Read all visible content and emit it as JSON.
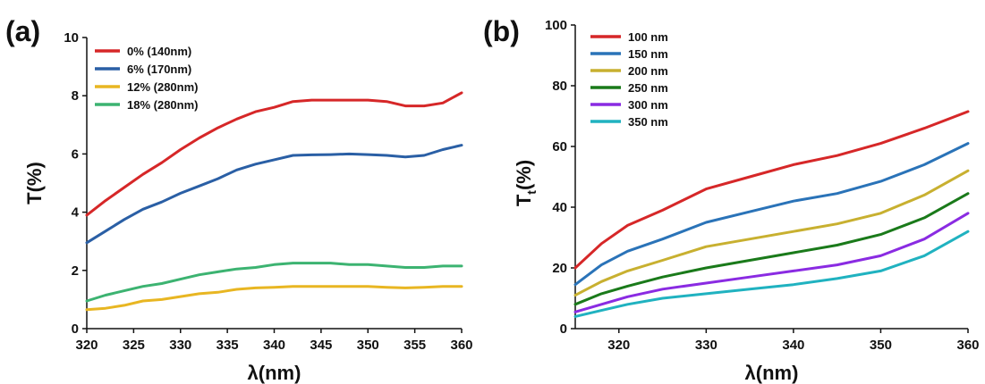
{
  "chart_data": [
    {
      "type": "line",
      "panel_label": "(a)",
      "xlabel": "λ(nm)",
      "ylabel": "T(%)",
      "xlim": [
        320,
        360
      ],
      "ylim": [
        0,
        10
      ],
      "xticks": [
        320,
        325,
        330,
        335,
        340,
        345,
        350,
        355,
        360
      ],
      "yticks": [
        0,
        2,
        4,
        6,
        8,
        10
      ],
      "legend_position": "top-left",
      "series": [
        {
          "name": "0% (140nm)",
          "color": "#d62728",
          "x": [
            320,
            322,
            324,
            326,
            328,
            330,
            332,
            334,
            336,
            338,
            340,
            342,
            344,
            346,
            348,
            350,
            352,
            354,
            356,
            358,
            360
          ],
          "y": [
            3.9,
            4.4,
            4.85,
            5.3,
            5.7,
            6.15,
            6.55,
            6.9,
            7.2,
            7.45,
            7.6,
            7.8,
            7.85,
            7.85,
            7.85,
            7.85,
            7.8,
            7.65,
            7.65,
            7.75,
            8.1
          ]
        },
        {
          "name": "6% (170nm)",
          "color": "#2a5fa5",
          "x": [
            320,
            322,
            324,
            326,
            328,
            330,
            332,
            334,
            336,
            338,
            340,
            342,
            344,
            346,
            348,
            350,
            352,
            354,
            356,
            358,
            360
          ],
          "y": [
            2.95,
            3.35,
            3.75,
            4.1,
            4.35,
            4.65,
            4.9,
            5.15,
            5.45,
            5.65,
            5.8,
            5.95,
            5.97,
            5.98,
            6.0,
            5.98,
            5.95,
            5.9,
            5.95,
            6.15,
            6.3
          ]
        },
        {
          "name": "12% (280nm)",
          "color": "#e8b622",
          "x": [
            320,
            322,
            324,
            326,
            328,
            330,
            332,
            334,
            336,
            338,
            340,
            342,
            344,
            346,
            348,
            350,
            352,
            354,
            356,
            358,
            360
          ],
          "y": [
            0.65,
            0.7,
            0.8,
            0.95,
            1.0,
            1.1,
            1.2,
            1.25,
            1.35,
            1.4,
            1.42,
            1.45,
            1.45,
            1.45,
            1.45,
            1.45,
            1.42,
            1.4,
            1.42,
            1.45,
            1.45
          ]
        },
        {
          "name": "18% (280nm)",
          "color": "#3cb371",
          "x": [
            320,
            322,
            324,
            326,
            328,
            330,
            332,
            334,
            336,
            338,
            340,
            342,
            344,
            346,
            348,
            350,
            352,
            354,
            356,
            358,
            360
          ],
          "y": [
            0.95,
            1.15,
            1.3,
            1.45,
            1.55,
            1.7,
            1.85,
            1.95,
            2.05,
            2.1,
            2.2,
            2.25,
            2.25,
            2.25,
            2.2,
            2.2,
            2.15,
            2.1,
            2.1,
            2.15,
            2.15
          ]
        }
      ]
    },
    {
      "type": "line",
      "panel_label": "(b)",
      "xlabel": "λ(nm)",
      "ylabel": "Tt(%)",
      "ylabel_main": "T",
      "ylabel_sub": "t",
      "ylabel_tail": "(%)",
      "xlim": [
        315,
        360
      ],
      "ylim": [
        0,
        100
      ],
      "xticks": [
        320,
        330,
        340,
        350,
        360
      ],
      "yticks": [
        0,
        20,
        40,
        60,
        80,
        100
      ],
      "legend_position": "top-left",
      "series": [
        {
          "name": "100 nm",
          "color": "#d62728",
          "x": [
            315,
            318,
            321,
            325,
            330,
            335,
            340,
            345,
            350,
            355,
            360
          ],
          "y": [
            20,
            28,
            34,
            39,
            46,
            50,
            54,
            57,
            61,
            66,
            71.5
          ]
        },
        {
          "name": "150 nm",
          "color": "#2a73b8",
          "x": [
            315,
            318,
            321,
            325,
            330,
            335,
            340,
            345,
            350,
            355,
            360
          ],
          "y": [
            14.5,
            21,
            25.5,
            29.5,
            35,
            38.5,
            42,
            44.5,
            48.5,
            54,
            61
          ]
        },
        {
          "name": "200 nm",
          "color": "#c8b030",
          "x": [
            315,
            318,
            321,
            325,
            330,
            335,
            340,
            345,
            350,
            355,
            360
          ],
          "y": [
            11,
            15.5,
            19,
            22.5,
            27,
            29.5,
            32,
            34.5,
            38,
            44,
            52
          ]
        },
        {
          "name": "250 nm",
          "color": "#1a7a1a",
          "x": [
            315,
            318,
            321,
            325,
            330,
            335,
            340,
            345,
            350,
            355,
            360
          ],
          "y": [
            8,
            11.5,
            14,
            17,
            20,
            22.5,
            25,
            27.5,
            31,
            36.5,
            44.5
          ]
        },
        {
          "name": "300 nm",
          "color": "#8a2be2",
          "x": [
            315,
            318,
            321,
            325,
            330,
            335,
            340,
            345,
            350,
            355,
            360
          ],
          "y": [
            5.5,
            8,
            10.5,
            13,
            15,
            17,
            19,
            21,
            24,
            29.5,
            38
          ]
        },
        {
          "name": "350 nm",
          "color": "#20b2c0",
          "x": [
            315,
            318,
            321,
            325,
            330,
            335,
            340,
            345,
            350,
            355,
            360
          ],
          "y": [
            4,
            6,
            8,
            10,
            11.5,
            13,
            14.5,
            16.5,
            19,
            24,
            32
          ]
        }
      ]
    }
  ]
}
